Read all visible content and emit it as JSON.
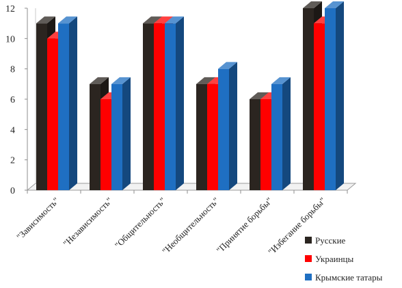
{
  "chart_data": {
    "type": "bar",
    "categories": [
      "\"Зависимость\"",
      "\"Независимость\"",
      "\"Общительность\"",
      "\"Необщительность\"",
      "\"Принятие борьбы\"",
      "\"Избегание борьбы\""
    ],
    "series": [
      {
        "name": "Русские",
        "values": [
          11,
          7,
          11,
          7,
          6,
          12
        ],
        "color": "#2b2520"
      },
      {
        "name": "Украинцы",
        "values": [
          10,
          6,
          11,
          7,
          6,
          11
        ],
        "color": "#ff0000"
      },
      {
        "name": "Крымские татары",
        "values": [
          11,
          7,
          11,
          8,
          7,
          12
        ],
        "color": "#1f6fc2"
      }
    ],
    "yticks": [
      "0",
      "2",
      "4",
      "6",
      "8",
      "10",
      "12"
    ],
    "ylim": [
      0,
      12
    ],
    "grid": false,
    "legend_position": "bottom-right"
  }
}
